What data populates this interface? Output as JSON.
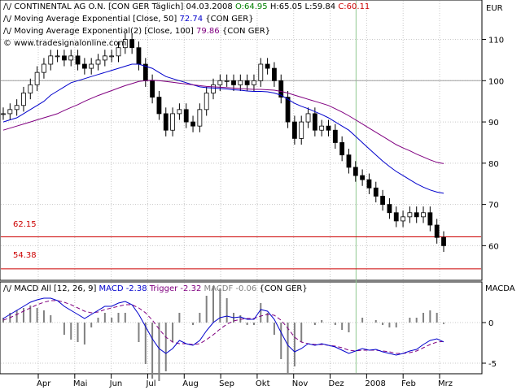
{
  "header": {
    "symbol": "CONTINENTAL AG O.N. [CON GER  Täglich]",
    "date": "04.03.2008",
    "open": "O:64.95",
    "high": "H:65.05",
    "low": "L:59.84",
    "close": "C:60.11",
    "currency": "EUR"
  },
  "legend": [
    {
      "text": "Moving Average Exponential [Close, 50]",
      "value": "72.74",
      "suffix": "{CON GER}",
      "color": "#0000cc"
    },
    {
      "text": "Moving Average Exponential(2) [Close, 100]",
      "value": "79.86",
      "suffix": "{CON GER}",
      "color": "#800080"
    }
  ],
  "copyright": "© www.tradesignalonline.com",
  "levels": [
    {
      "label": "62.15",
      "value": 62.15
    },
    {
      "label": "54.38",
      "value": 54.38
    }
  ],
  "macd": {
    "title_prefix": "MACD All [12, 26, 9]",
    "macd_label": "MACD -2.38",
    "trigger_label": "Trigger -2.32",
    "macdf_label": "MACDF -0.06",
    "suffix": "{CON GER}",
    "panel_label": "MACDA"
  },
  "colors": {
    "grid": "#c8c8c8",
    "ma50": "#0000cc",
    "ma100": "#800080",
    "level": "#cc0000",
    "macd": "#0000cc",
    "trigger": "#800080",
    "histogram": "#808080",
    "vline": "#90c890"
  },
  "chart_data": {
    "type": "line",
    "title": "CONTINENTAL AG O.N. [CON GER  Täglich]",
    "ylabel": "EUR",
    "ylim": [
      52,
      117
    ],
    "yticks": [
      60,
      70,
      80,
      90,
      100,
      110
    ],
    "months": [
      "Apr",
      "Mai",
      "Jun",
      "Jul",
      "Aug",
      "Sep",
      "Okt",
      "Nov",
      "Dez",
      "2008",
      "Feb",
      "Mrz"
    ],
    "price_close": [
      92,
      93,
      94,
      97,
      99,
      102,
      104,
      106,
      106,
      105,
      106,
      104,
      103,
      104,
      105,
      106,
      106,
      108,
      110,
      108,
      104,
      100,
      96,
      92,
      88,
      92,
      93,
      90,
      89,
      93,
      97,
      99,
      100,
      100,
      99,
      100,
      99,
      100,
      104,
      103,
      100,
      96,
      90,
      86,
      90,
      92,
      88,
      89,
      88,
      85,
      82,
      79,
      77,
      76,
      74,
      72,
      70,
      68,
      66,
      67,
      68,
      67,
      68,
      65,
      62,
      60
    ],
    "ma50": [
      90,
      90.5,
      91,
      92,
      93,
      94,
      95,
      96.5,
      97.5,
      98.5,
      99.5,
      100,
      100.5,
      101,
      101.5,
      102,
      102.5,
      103,
      103.5,
      104,
      104,
      103.5,
      103,
      102,
      101,
      100.5,
      100,
      99.5,
      99,
      98.5,
      98.3,
      98.2,
      98.1,
      98,
      97.8,
      97.7,
      97.5,
      97.4,
      97.4,
      97.3,
      97,
      96.5,
      95.5,
      94.5,
      93.8,
      93.2,
      92.5,
      91.8,
      91,
      90,
      89,
      88,
      86.5,
      85,
      83.5,
      82,
      80.5,
      79.2,
      78,
      77,
      76,
      75,
      74.2,
      73.5,
      73,
      72.7
    ],
    "ma100": [
      88,
      88.5,
      89,
      89.5,
      90,
      90.5,
      91,
      91.5,
      92,
      92.8,
      93.5,
      94.2,
      95,
      95.7,
      96.4,
      97,
      97.6,
      98.2,
      98.8,
      99.3,
      99.8,
      100,
      100.1,
      100,
      99.8,
      99.6,
      99.4,
      99.2,
      99,
      98.8,
      98.6,
      98.5,
      98.4,
      98.3,
      98.2,
      98.1,
      98,
      97.9,
      97.9,
      97.8,
      97.7,
      97.4,
      97,
      96.5,
      96,
      95.5,
      95,
      94.5,
      94,
      93.2,
      92.4,
      91.5,
      90.5,
      89.5,
      88.5,
      87.5,
      86.5,
      85.5,
      84.5,
      83.7,
      83,
      82.2,
      81.5,
      80.8,
      80.2,
      79.9
    ],
    "macd": [
      0.5,
      1,
      1.5,
      2,
      2.5,
      2.8,
      3,
      3,
      2.7,
      2,
      1.5,
      1,
      0.5,
      1,
      1.5,
      2,
      2,
      2.4,
      2.6,
      2.2,
      1,
      -0.5,
      -2,
      -3.2,
      -3.8,
      -3.2,
      -2.2,
      -2.6,
      -2.8,
      -2.2,
      -1,
      0,
      0.6,
      0.8,
      0.6,
      0.7,
      0.4,
      0.4,
      1.6,
      1.4,
      0.4,
      -1.2,
      -2.8,
      -3.6,
      -3.2,
      -2.6,
      -2.8,
      -2.6,
      -2.8,
      -3,
      -3.4,
      -3.8,
      -3.5,
      -3.2,
      -3.4,
      -3.3,
      -3.6,
      -3.8,
      -4,
      -3.8,
      -3.5,
      -3.3,
      -2.7,
      -2.2,
      -2,
      -2.38
    ],
    "trigger": [
      0.3,
      0.6,
      1,
      1.4,
      1.8,
      2.2,
      2.5,
      2.7,
      2.7,
      2.5,
      2.2,
      1.8,
      1.4,
      1.2,
      1.3,
      1.6,
      1.8,
      2,
      2.2,
      2.2,
      1.8,
      1.2,
      0.3,
      -0.8,
      -1.8,
      -2.4,
      -2.6,
      -2.6,
      -2.7,
      -2.6,
      -2.1,
      -1.5,
      -0.8,
      -0.2,
      0.2,
      0.4,
      0.5,
      0.5,
      0.8,
      1,
      0.9,
      0.3,
      -0.7,
      -1.8,
      -2.4,
      -2.6,
      -2.7,
      -2.7,
      -2.8,
      -2.9,
      -3.1,
      -3.4,
      -3.5,
      -3.4,
      -3.4,
      -3.4,
      -3.5,
      -3.6,
      -3.8,
      -3.8,
      -3.7,
      -3.5,
      -3.1,
      -2.7,
      -2.4,
      -2.32
    ],
    "macd_ylim": [
      -5.5,
      3.5
    ],
    "macd_yticks": [
      -5,
      0
    ]
  }
}
